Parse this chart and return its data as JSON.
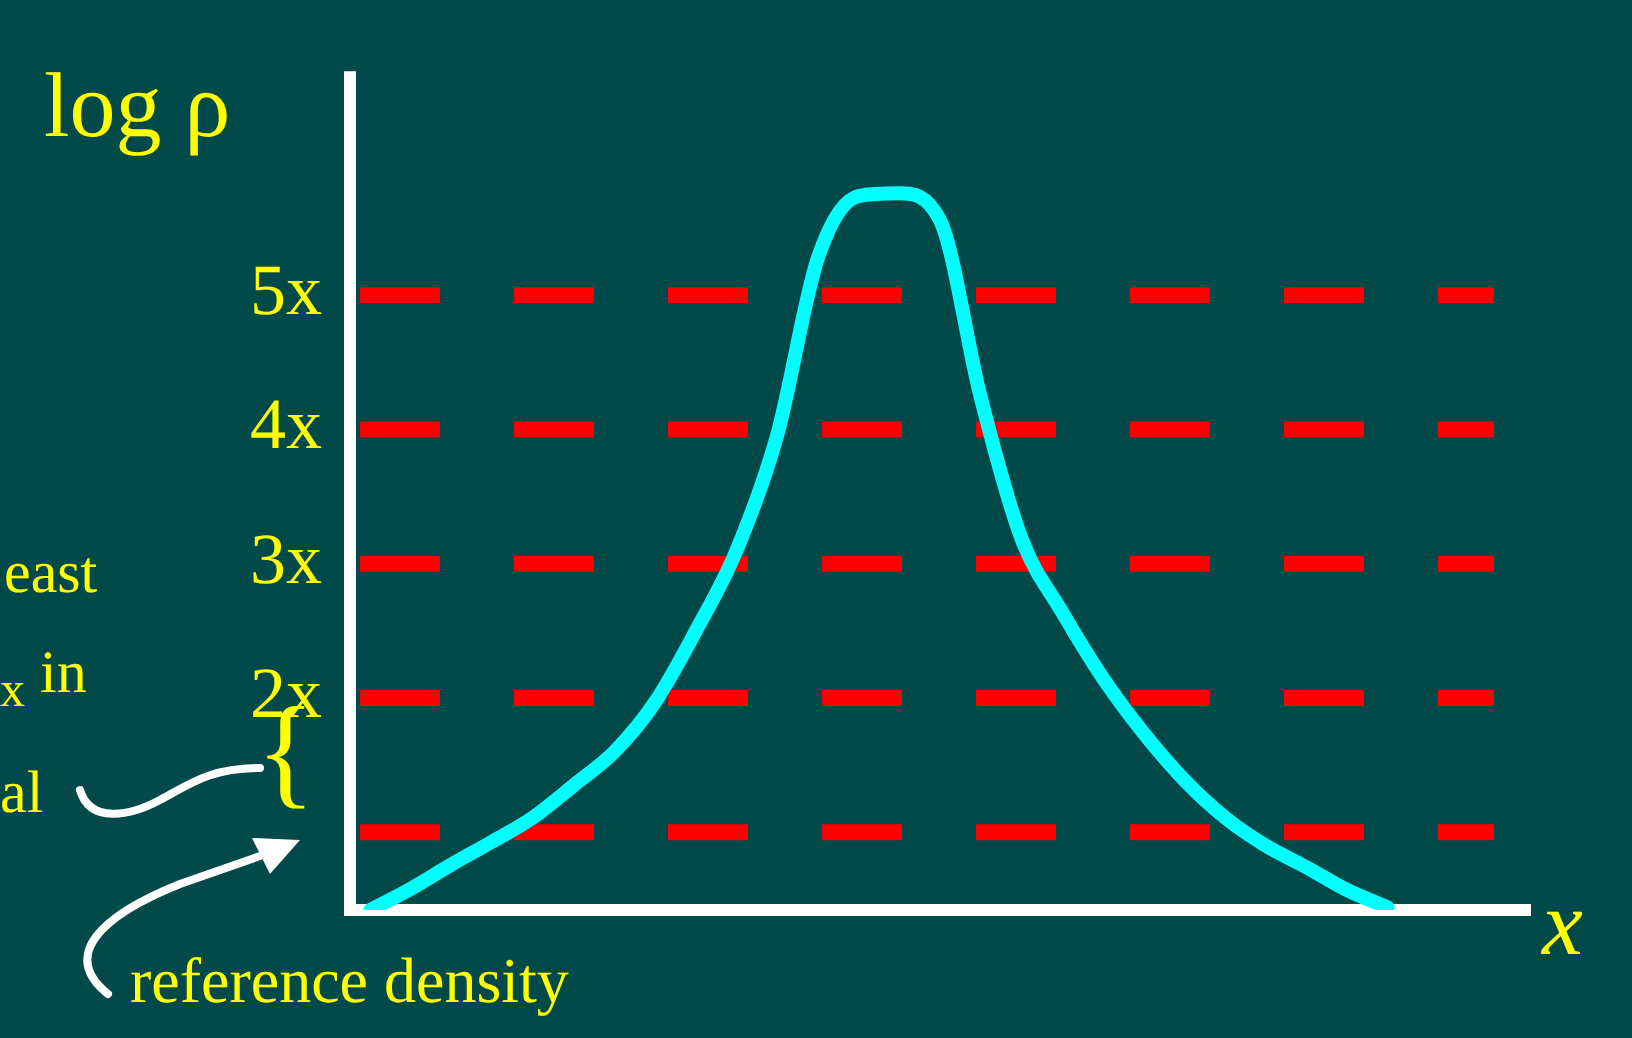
{
  "chart_data": {
    "type": "line",
    "ylabel": "log ρ",
    "xlabel": "x",
    "categories": [
      null,
      null,
      null,
      null,
      null,
      null,
      null,
      null,
      null,
      null,
      null,
      null,
      null,
      null,
      null,
      null,
      null,
      null,
      null,
      null,
      null,
      null,
      null,
      null,
      null,
      null,
      null,
      null,
      null
    ],
    "series": [
      {
        "color": "#00ffff",
        "values": [
          0.42,
          0.58,
          0.76,
          0.93,
          1.11,
          1.35,
          1.6,
          1.97,
          2.5,
          3.1,
          3.96,
          5.28,
          5.74,
          5.76,
          5.56,
          4.24,
          3.19,
          2.64,
          2.15,
          1.74,
          1.39,
          1.11,
          0.9,
          0.74,
          0.57,
          0.44,
          null,
          null,
          null
        ]
      }
    ],
    "ylim": [
      0.42,
      6.67
    ],
    "yticks": [
      {
        "value": 1,
        "label": null
      },
      {
        "value": 2,
        "label": "2x"
      },
      {
        "value": 3,
        "label": "3x"
      },
      {
        "value": 4,
        "label": "4x"
      },
      {
        "value": 5,
        "label": "5x"
      }
    ],
    "tick_labels": "y",
    "grid": false,
    "legend": false,
    "marker": "none",
    "line_style": "solid",
    "ref_lines": [
      {
        "axis": "y",
        "value": 1,
        "label": null,
        "color": "#ff0000",
        "line_style": "dashed"
      },
      {
        "axis": "y",
        "value": 2,
        "label": null,
        "color": "#ff0000",
        "line_style": "dashed"
      },
      {
        "axis": "y",
        "value": 3,
        "label": null,
        "color": "#ff0000",
        "line_style": "dashed"
      },
      {
        "axis": "y",
        "value": 4,
        "label": null,
        "color": "#ff0000",
        "line_style": "dashed"
      },
      {
        "axis": "y",
        "value": 5,
        "label": null,
        "color": "#ff0000",
        "line_style": "dashed"
      }
    ],
    "annotations": [
      "east",
      "$_{x}$ in",
      "al",
      "{",
      "reference density"
    ]
  }
}
